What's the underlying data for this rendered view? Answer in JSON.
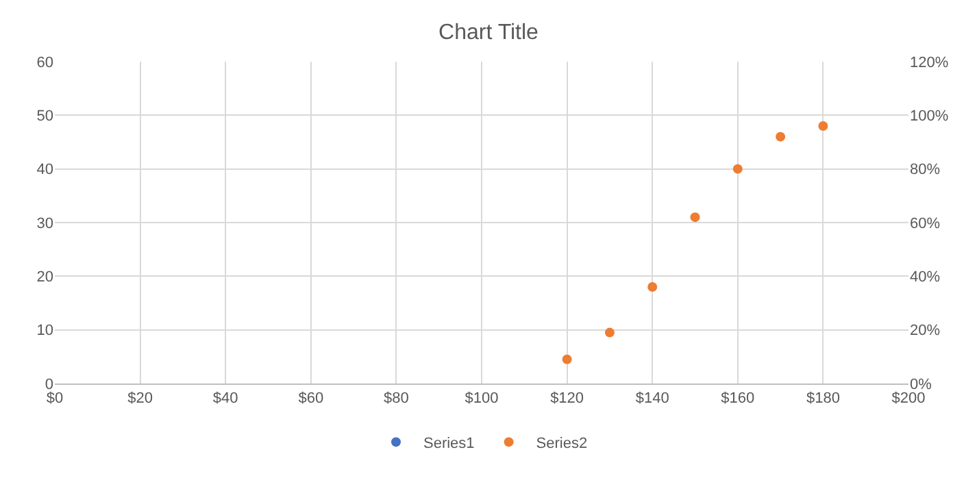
{
  "chart_data": {
    "type": "scatter",
    "title": "Chart Title",
    "x": [
      120,
      130,
      140,
      150,
      160,
      170,
      180
    ],
    "series": [
      {
        "name": "Series1",
        "color": "#4472c4",
        "values": [
          null,
          null,
          null,
          null,
          null,
          null,
          null
        ]
      },
      {
        "name": "Series2",
        "color": "#ed7d31",
        "axis": "y2",
        "values": [
          9,
          19,
          36,
          62,
          80,
          92,
          96
        ]
      }
    ],
    "xlim": [
      0,
      200
    ],
    "xticks": [
      {
        "value": 0,
        "label": "$0"
      },
      {
        "value": 20,
        "label": "$20"
      },
      {
        "value": 40,
        "label": "$40"
      },
      {
        "value": 60,
        "label": "$60"
      },
      {
        "value": 80,
        "label": "$80"
      },
      {
        "value": 100,
        "label": "$100"
      },
      {
        "value": 120,
        "label": "$120"
      },
      {
        "value": 140,
        "label": "$140"
      },
      {
        "value": 160,
        "label": "$160"
      },
      {
        "value": 180,
        "label": "$180"
      },
      {
        "value": 200,
        "label": "$200"
      }
    ],
    "ylim": [
      0,
      60
    ],
    "yticks": [
      0,
      10,
      20,
      30,
      40,
      50,
      60
    ],
    "y2lim": [
      0,
      120
    ],
    "y2ticks": [
      {
        "value": 0,
        "label": "0%"
      },
      {
        "value": 20,
        "label": "20%"
      },
      {
        "value": 40,
        "label": "40%"
      },
      {
        "value": 60,
        "label": "60%"
      },
      {
        "value": 80,
        "label": "80%"
      },
      {
        "value": 100,
        "label": "100%"
      },
      {
        "value": 120,
        "label": "120%"
      }
    ],
    "grid": true,
    "legend": "bottom",
    "marker": "circle"
  }
}
